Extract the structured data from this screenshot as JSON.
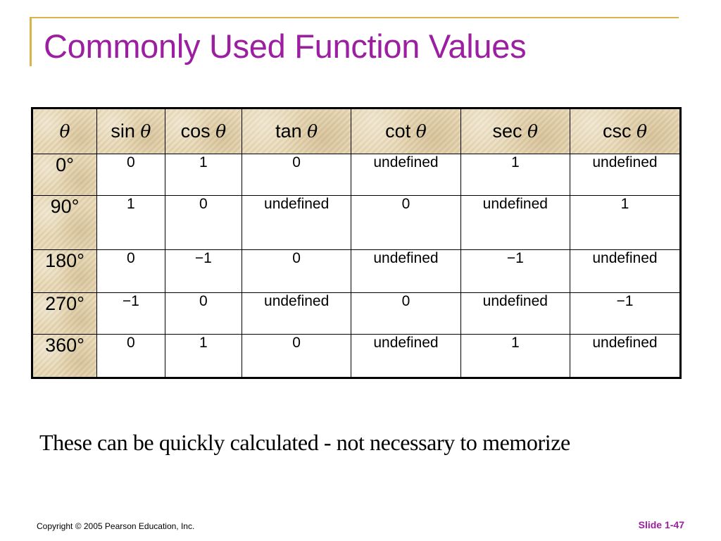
{
  "slide": {
    "title": "Commonly Used Function Values",
    "note": "These can be quickly calculated - not necessary to memorize",
    "copyright": "Copyright  © 2005  Pearson Education, Inc.",
    "slide_number": "Slide 1-47"
  },
  "table": {
    "header": [
      {
        "fn": "",
        "var": "θ"
      },
      {
        "fn": "sin ",
        "var": "θ"
      },
      {
        "fn": "cos ",
        "var": "θ"
      },
      {
        "fn": "tan ",
        "var": "θ"
      },
      {
        "fn": "cot ",
        "var": "θ"
      },
      {
        "fn": "sec ",
        "var": "θ"
      },
      {
        "fn": "csc ",
        "var": "θ"
      }
    ],
    "rows": [
      {
        "angle": "0°",
        "values": [
          "0",
          "1",
          "0",
          "undefined",
          "1",
          "undefined"
        ]
      },
      {
        "angle": "90°",
        "values": [
          "1",
          "0",
          "undefined",
          "0",
          "undefined",
          "1"
        ]
      },
      {
        "angle": "180°",
        "values": [
          "0",
          "−1",
          "0",
          "undefined",
          "−1",
          "undefined"
        ]
      },
      {
        "angle": "270°",
        "values": [
          "−1",
          "0",
          "undefined",
          "0",
          "undefined",
          "−1"
        ]
      },
      {
        "angle": "360°",
        "values": [
          "0",
          "1",
          "0",
          "undefined",
          "1",
          "undefined"
        ]
      }
    ]
  },
  "colors": {
    "title": "#9b1fa0",
    "frame": "#d8b44a",
    "header_texture": "#e6d7b4"
  }
}
